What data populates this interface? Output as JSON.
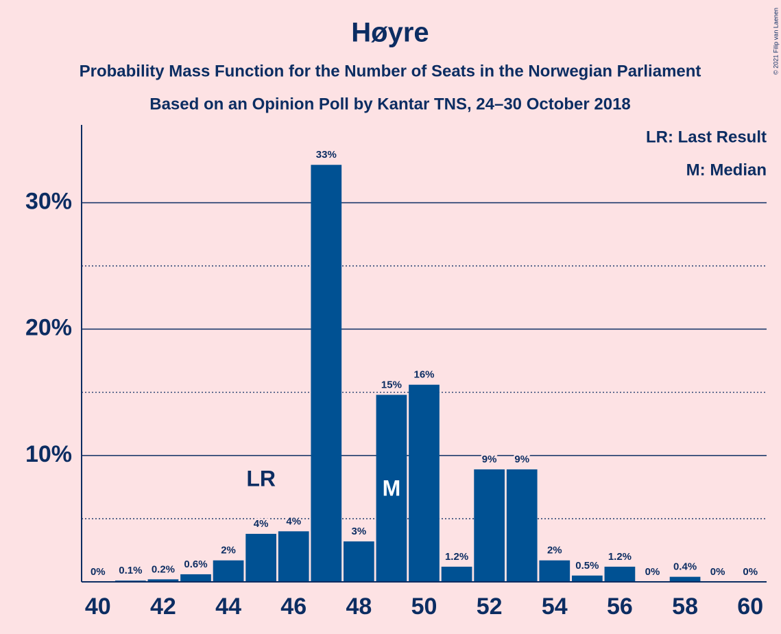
{
  "chart_data": {
    "type": "bar",
    "title": "Høyre",
    "subtitle": "Probability Mass Function for the Number of Seats in the Norwegian Parliament",
    "subtitle2": "Based on an Opinion Poll by Kantar TNS, 24–30 October 2018",
    "copyright": "© 2021 Filip van Laenen",
    "legend": [
      "LR: Last Result",
      "M: Median"
    ],
    "x": [
      40,
      41,
      42,
      43,
      44,
      45,
      46,
      47,
      48,
      49,
      50,
      51,
      52,
      53,
      54,
      55,
      56,
      57,
      58,
      59,
      60
    ],
    "values": [
      0,
      0.1,
      0.2,
      0.6,
      1.7,
      3.8,
      4.0,
      33.0,
      3.2,
      14.8,
      15.6,
      1.2,
      8.9,
      8.9,
      1.7,
      0.5,
      1.2,
      0,
      0.4,
      0,
      0
    ],
    "value_labels": [
      "0%",
      "0.1%",
      "0.2%",
      "0.6%",
      "2%",
      "4%",
      "4%",
      "33%",
      "3%",
      "15%",
      "16%",
      "1.2%",
      "9%",
      "9%",
      "2%",
      "0.5%",
      "1.2%",
      "0%",
      "0.4%",
      "0%",
      "0%"
    ],
    "color": "#005193",
    "annotations": [
      {
        "text": "LR",
        "x": 45
      },
      {
        "text": "M",
        "x": 49
      }
    ],
    "xlim": [
      39.5,
      60.5
    ],
    "xticks": [
      40,
      42,
      44,
      46,
      48,
      50,
      52,
      54,
      56,
      58,
      60
    ],
    "ylim": [
      0,
      36
    ],
    "yticks": [
      {
        "value": 10,
        "label": "10%"
      },
      {
        "value": 20,
        "label": "20%"
      },
      {
        "value": 30,
        "label": "30%"
      }
    ],
    "minor_yticks": [
      5,
      15,
      25
    ],
    "grid": true
  }
}
